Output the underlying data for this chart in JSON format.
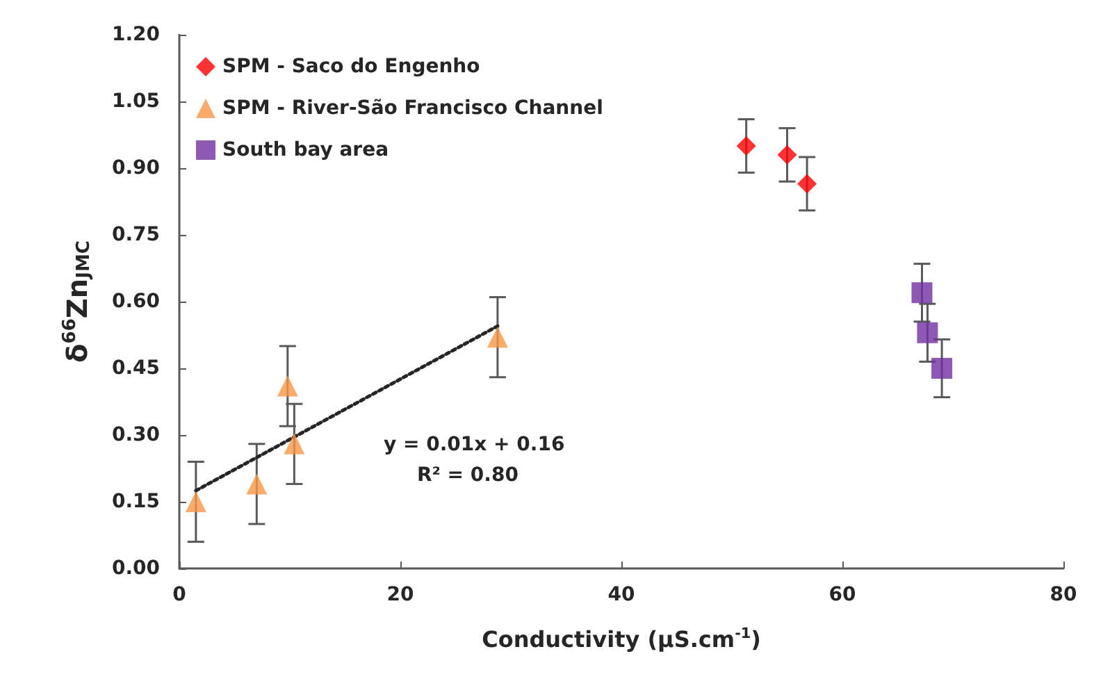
{
  "chart_data": {
    "type": "scatter",
    "xlabel": "Conductivity (µS.cm$^{-1}$)",
    "ylabel": "δ$^{66}$Zn$_{JMC}$",
    "xlim": [
      0,
      80
    ],
    "xticks": [
      0,
      20,
      40,
      60,
      80
    ],
    "ylim": [
      0,
      1.2
    ],
    "yticks": [
      {
        "value": 0,
        "label": "0.00"
      },
      {
        "value": 0.15,
        "label": "0.15"
      },
      {
        "value": 0.3,
        "label": "0.30"
      },
      {
        "value": 0.45,
        "label": "0.45"
      },
      {
        "value": 0.6,
        "label": "0.60"
      },
      {
        "value": 0.75,
        "label": "0.75"
      },
      {
        "value": 0.9,
        "label": "0.90"
      },
      {
        "value": 1.05,
        "label": "1.05"
      },
      {
        "value": 1.2,
        "label": "1.20"
      }
    ],
    "grid": false,
    "legend": "top left",
    "series": [
      {
        "name": "SPM - Saco do Engenho",
        "color": "#ff0000",
        "marker": "diamond",
        "x": [
          51.3,
          55.0,
          56.8
        ],
        "values": [
          0.95,
          0.93,
          0.865
        ],
        "errors": [
          0.06,
          0.06,
          0.06
        ]
      },
      {
        "name": "SPM - River-São Francisco Channel",
        "color": "#f79646",
        "marker": "triangle",
        "x": [
          1.5,
          7.0,
          9.8,
          10.4,
          28.8
        ],
        "values": [
          0.15,
          0.19,
          0.41,
          0.28,
          0.52
        ],
        "errors": [
          0.09,
          0.09,
          0.09,
          0.09,
          0.09
        ]
      },
      {
        "name": "South bay area",
        "color": "#7030a0",
        "marker": "square",
        "x": [
          67.2,
          67.7,
          69.0
        ],
        "values": [
          0.62,
          0.53,
          0.45
        ],
        "errors": [
          0.065,
          0.065,
          0.065
        ]
      },
      {
        "type": "line",
        "color": "#262626",
        "line_style": "dotted",
        "marker": "none",
        "x": [
          1.5,
          28.8
        ],
        "values": [
          0.175,
          0.545
        ]
      }
    ],
    "annotations": [
      "y = 0.01x + 0.16",
      "R² = 0.80"
    ]
  }
}
